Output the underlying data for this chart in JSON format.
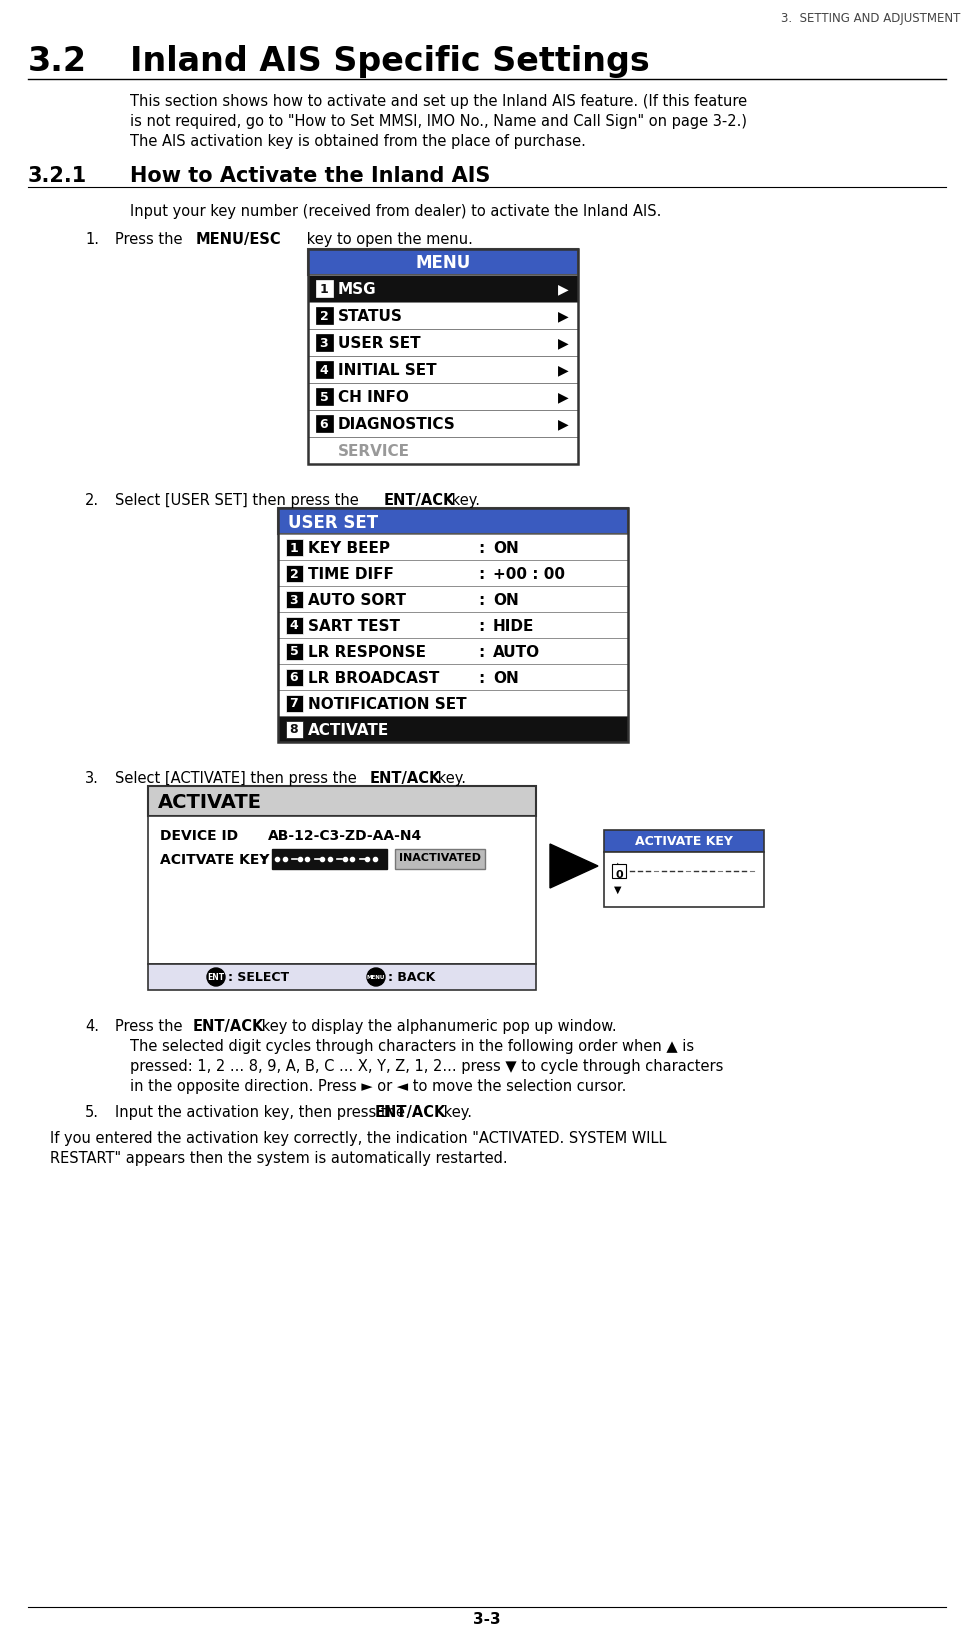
{
  "page_header": "3.  SETTING AND ADJUSTMENT",
  "section_num": "3.2",
  "section_title": "Inland AIS Specific Settings",
  "section_body_lines": [
    "This section shows how to activate and set up the Inland AIS feature. (If this feature",
    "is not required, go to \"How to Set MMSI, IMO No., Name and Call Sign\" on page 3-2.)",
    "The AIS activation key is obtained from the place of purchase."
  ],
  "subsection_num": "3.2.1",
  "subsection_title": "How to Activate the Inland AIS",
  "subsection_intro": "Input your key number (received from dealer) to activate the Inland AIS.",
  "page_footer": "3-3",
  "menu_title": "MENU",
  "menu_title_bg": "#3a5bbf",
  "menu_items": [
    {
      "num": "1",
      "name": "MSG",
      "arrow": true,
      "highlight": true
    },
    {
      "num": "2",
      "name": "STATUS",
      "arrow": true,
      "highlight": false
    },
    {
      "num": "3",
      "name": "USER SET",
      "arrow": true,
      "highlight": false
    },
    {
      "num": "4",
      "name": "INITIAL SET",
      "arrow": true,
      "highlight": false
    },
    {
      "num": "5",
      "name": "CH INFO",
      "arrow": true,
      "highlight": false
    },
    {
      "num": "6",
      "name": "DIAGNOSTICS",
      "arrow": true,
      "highlight": false
    },
    {
      "num": "",
      "name": "SERVICE",
      "arrow": false,
      "highlight": false,
      "gray": true
    }
  ],
  "userset_title": "USER SET",
  "userset_title_bg": "#3a5bbf",
  "userset_items": [
    {
      "num": "1",
      "name": "KEY BEEP",
      "value": "ON"
    },
    {
      "num": "2",
      "name": "TIME DIFF",
      "value": "+00 : 00"
    },
    {
      "num": "3",
      "name": "AUTO SORT",
      "value": "ON"
    },
    {
      "num": "4",
      "name": "SART TEST",
      "value": "HIDE"
    },
    {
      "num": "5",
      "name": "LR RESPONSE",
      "value": "AUTO"
    },
    {
      "num": "6",
      "name": "LR BROADCAST",
      "value": "ON"
    },
    {
      "num": "7",
      "name": "NOTIFICATION SET",
      "value": ""
    },
    {
      "num": "8",
      "name": "ACTIVATE",
      "value": "",
      "highlight": true
    }
  ],
  "activate_title": "ACTIVATE",
  "activate_device_id": "AB-12-C3-ZD-AA-N4",
  "activate_status": "INACTIVATED",
  "activate_key_popup_title": "ACTIVATE KEY",
  "activate_key_popup_bg": "#3a5bbf",
  "bg_color": "#ffffff",
  "border_color": "#000000",
  "step4_lines": [
    "Press the ENT/ACK key to display the alphanumeric pop up window.",
    "The selected digit cycles through characters in the following order when ▲ is",
    "pressed: 1, 2 ... 8, 9, A, B, C ... X, Y, Z, 1, 2... press ▼ to cycle through characters",
    "in the opposite direction. Press ► or ◄ to move the selection cursor."
  ],
  "final_note_lines": [
    "If you entered the activation key correctly, the indication \"ACTIVATED. SYSTEM WILL",
    "RESTART\" appears then the system is automatically restarted."
  ]
}
